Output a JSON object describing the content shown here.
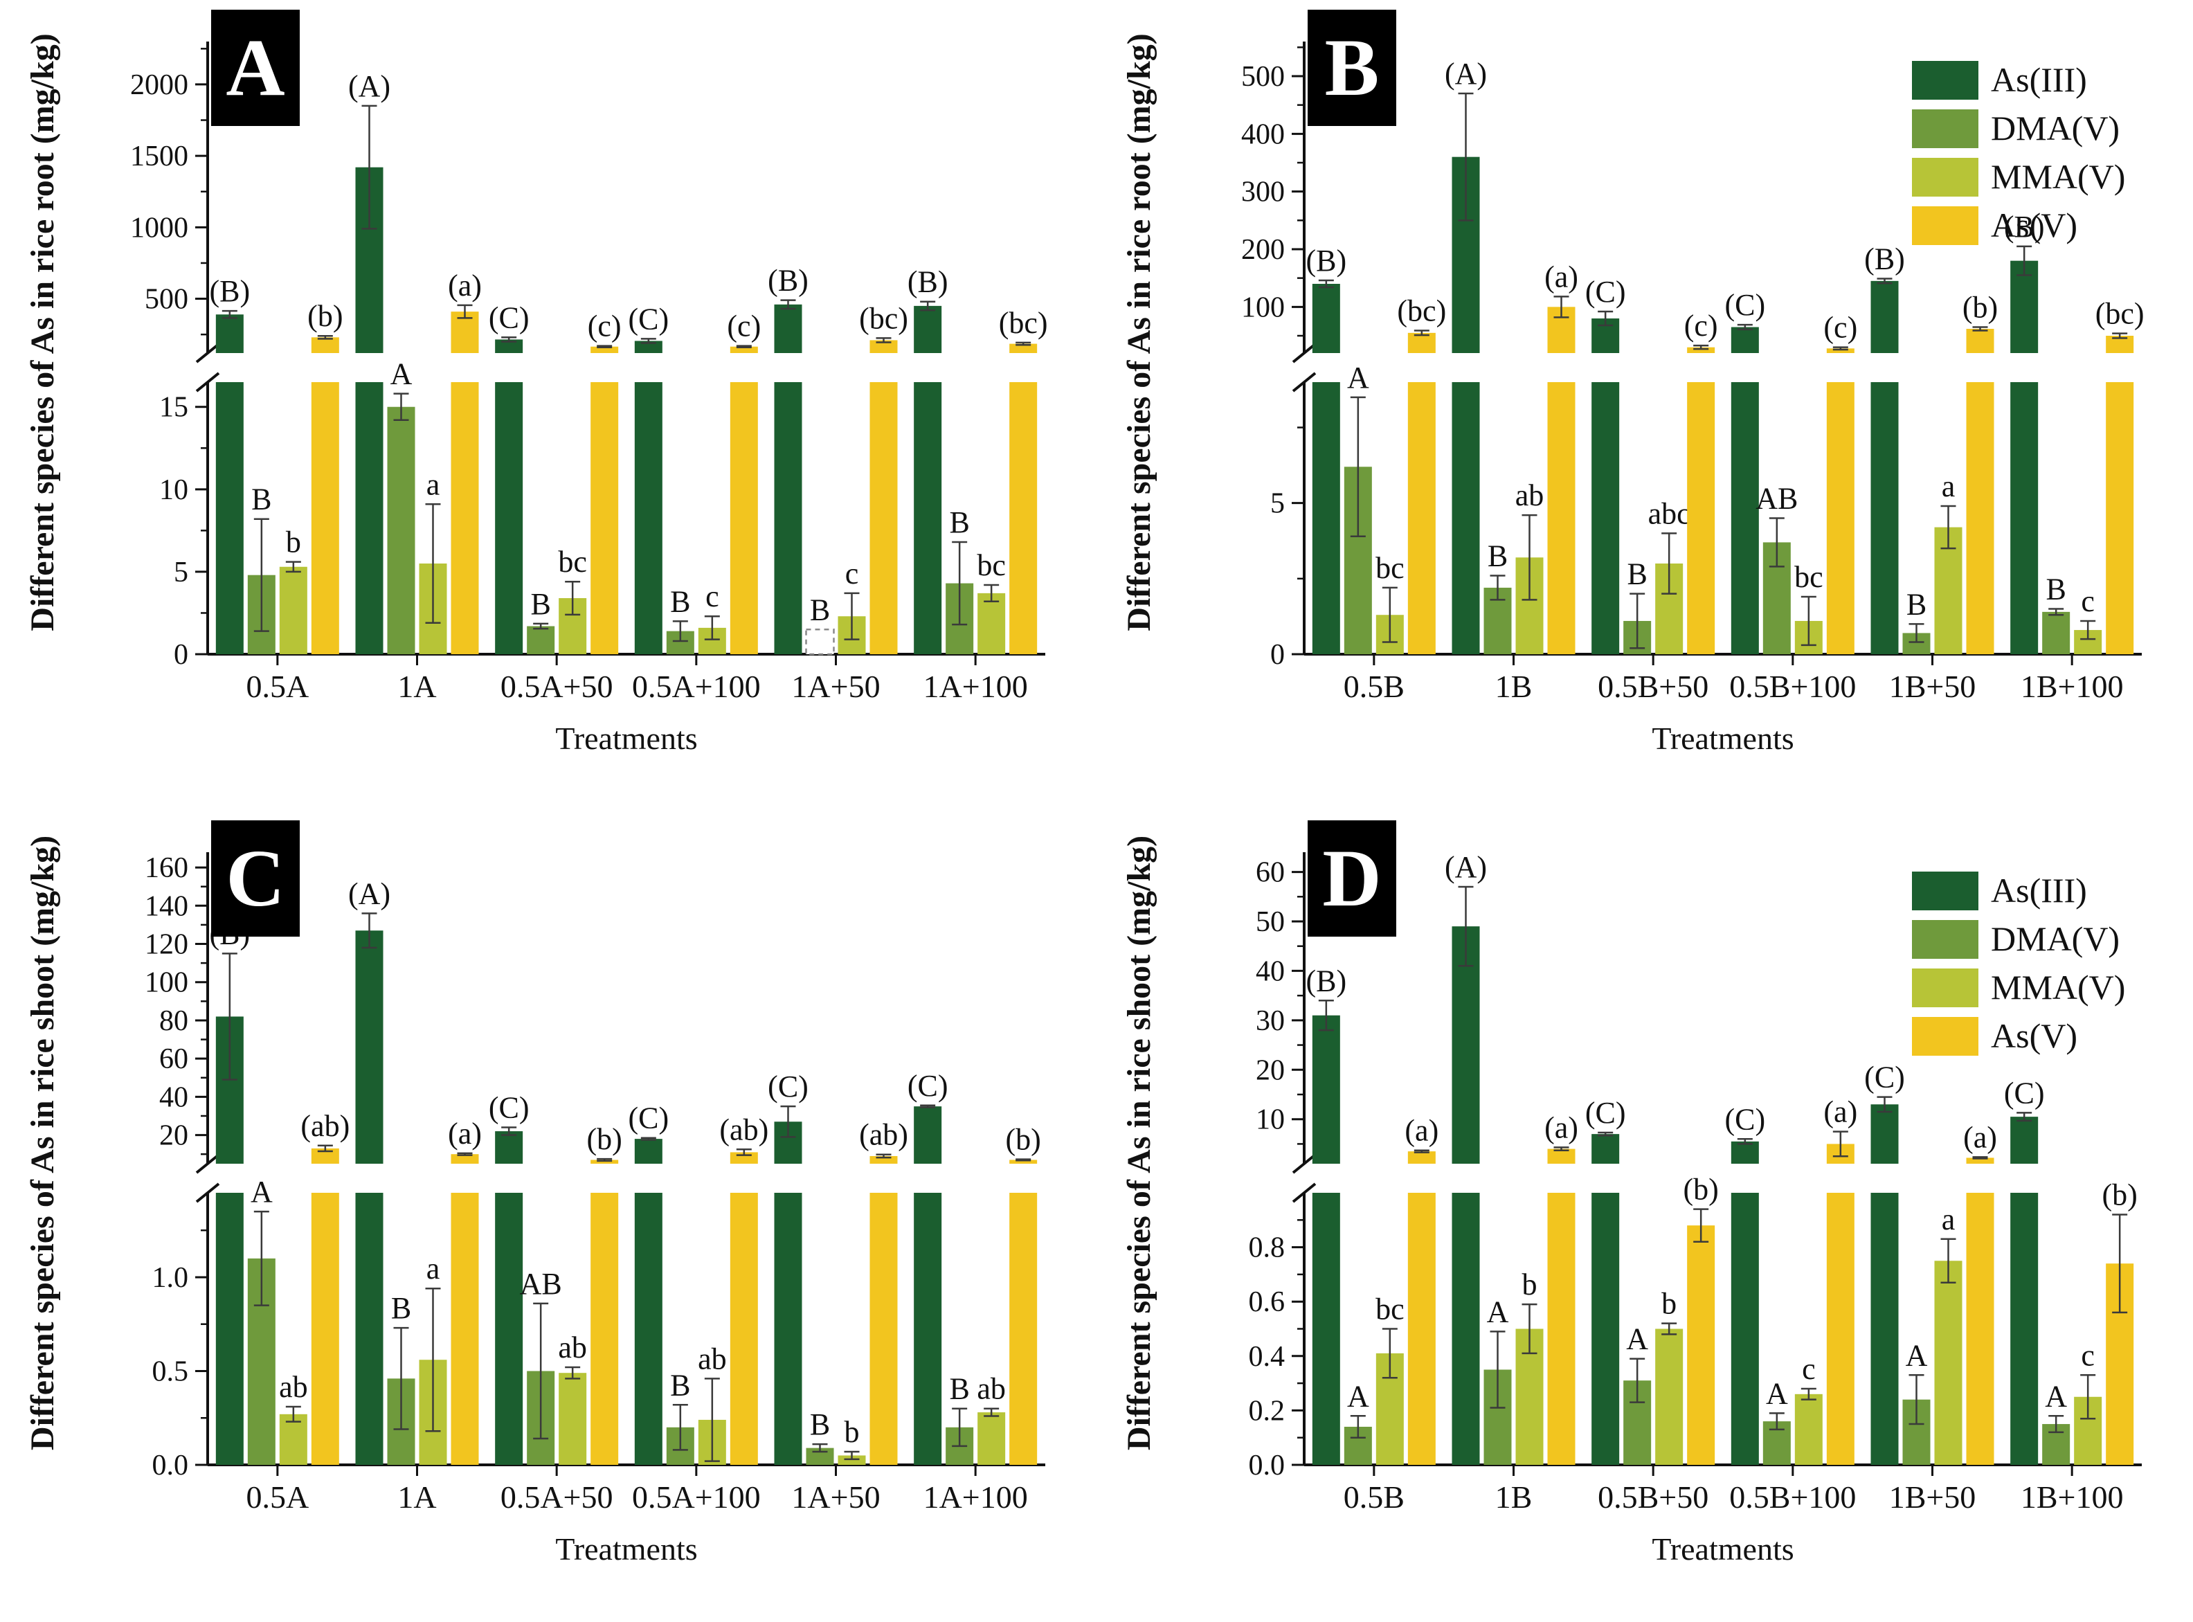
{
  "chart_data": [
    {
      "panel": "A",
      "type": "bar",
      "ylabel": "Different species of As in rice root (mg/kg)",
      "xlabel": "Treatments",
      "legend": false,
      "legend_position": "top-right",
      "grid": false,
      "categories": [
        "0.5A",
        "1A",
        "0.5A+50",
        "0.5A+100",
        "1A+50",
        "1A+100"
      ],
      "axis_break": {
        "lower_range": [
          0,
          16.5
        ],
        "lower_ticks": [
          0,
          5,
          10,
          15
        ],
        "lower_tick_labels": [
          "0",
          "5",
          "10",
          "15"
        ],
        "lower_minor_step": 2.5,
        "upper_range": [
          120,
          2300
        ],
        "upper_ticks": [
          500,
          1000,
          1500,
          2000
        ],
        "upper_tick_labels": [
          "500",
          "1000",
          "1500",
          "2000"
        ],
        "upper_minor_step": 250
      },
      "series": [
        {
          "name": "As(III)",
          "color": "#1b5e2f",
          "values": [
            390,
            1420,
            215,
            205,
            460,
            450
          ],
          "errors": [
            25,
            430,
            15,
            15,
            30,
            30
          ],
          "letters": [
            "(B)",
            "(A)",
            "(C)",
            "(C)",
            "(B)",
            "(B)"
          ]
        },
        {
          "name": "DMA(V)",
          "color": "#6f9a3c",
          "values": [
            4.8,
            15,
            1.7,
            1.4,
            1.5,
            4.3
          ],
          "errors": [
            3.4,
            0.8,
            0.15,
            0.6,
            0,
            2.5
          ],
          "letters": [
            "B",
            "A",
            "B",
            "B",
            "B",
            "B"
          ],
          "dashed": [
            false,
            false,
            false,
            false,
            true,
            false
          ]
        },
        {
          "name": "MMA(V)",
          "color": "#b7c437",
          "values": [
            5.3,
            5.5,
            3.4,
            1.6,
            2.3,
            3.7
          ],
          "errors": [
            0.3,
            3.6,
            1.0,
            0.7,
            1.4,
            0.5
          ],
          "letters": [
            "b",
            "a",
            "bc",
            "c",
            "c",
            "bc"
          ]
        },
        {
          "name": "As(V)",
          "color": "#f2c51f",
          "values": [
            230,
            410,
            165,
            165,
            210,
            185
          ],
          "errors": [
            10,
            45,
            5,
            5,
            15,
            8
          ],
          "letters": [
            "(b)",
            "(a)",
            "(c)",
            "(c)",
            "(bc)",
            "(bc)"
          ]
        }
      ]
    },
    {
      "panel": "B",
      "type": "bar",
      "ylabel": "Different species of As in rice root (mg/kg)",
      "xlabel": "Treatments",
      "legend": true,
      "legend_position": "top-right",
      "grid": false,
      "categories": [
        "0.5B",
        "1B",
        "0.5B+50",
        "0.5B+100",
        "1B+50",
        "1B+100"
      ],
      "axis_break": {
        "lower_range": [
          0,
          9
        ],
        "lower_ticks": [
          0,
          5
        ],
        "lower_tick_labels": [
          "0",
          "5"
        ],
        "lower_minor_step": 2.5,
        "upper_range": [
          20,
          560
        ],
        "upper_ticks": [
          100,
          200,
          300,
          400,
          500
        ],
        "upper_tick_labels": [
          "100",
          "200",
          "300",
          "400",
          "500"
        ],
        "upper_minor_step": 50
      },
      "series": [
        {
          "name": "As(III)",
          "color": "#1b5e2f",
          "values": [
            140,
            360,
            80,
            65,
            145,
            180
          ],
          "errors": [
            6,
            110,
            12,
            4,
            4,
            25
          ],
          "letters": [
            "(B)",
            "(A)",
            "(C)",
            "(C)",
            "(B)",
            "(B)"
          ]
        },
        {
          "name": "DMA(V)",
          "color": "#6f9a3c",
          "values": [
            6.2,
            2.2,
            1.1,
            3.7,
            0.7,
            1.4
          ],
          "errors": [
            2.3,
            0.4,
            0.9,
            0.8,
            0.3,
            0.1
          ],
          "letters": [
            "A",
            "B",
            "B",
            "AB",
            "B",
            "B"
          ]
        },
        {
          "name": "MMA(V)",
          "color": "#b7c437",
          "values": [
            1.3,
            3.2,
            3.0,
            1.1,
            4.2,
            0.8
          ],
          "errors": [
            0.9,
            1.4,
            1.0,
            0.8,
            0.7,
            0.3
          ],
          "letters": [
            "bc",
            "ab",
            "abc",
            "bc",
            "a",
            "c"
          ]
        },
        {
          "name": "As(V)",
          "color": "#f2c51f",
          "values": [
            55,
            100,
            30,
            28,
            62,
            50
          ],
          "errors": [
            4,
            18,
            3,
            2,
            3,
            4
          ],
          "letters": [
            "(bc)",
            "(a)",
            "(c)",
            "(c)",
            "(b)",
            "(bc)"
          ]
        }
      ]
    },
    {
      "panel": "C",
      "type": "bar",
      "ylabel": "Different species of As in rice shoot (mg/kg)",
      "xlabel": "Treatments",
      "legend": false,
      "legend_position": "top-right",
      "grid": false,
      "categories": [
        "0.5A",
        "1A",
        "0.5A+50",
        "0.5A+100",
        "1A+50",
        "1A+100"
      ],
      "axis_break": {
        "lower_range": [
          0,
          1.45
        ],
        "lower_ticks": [
          0,
          0.5,
          1.0
        ],
        "lower_tick_labels": [
          "0.0",
          "0.5",
          "1.0"
        ],
        "lower_minor_step": 0.25,
        "upper_range": [
          5,
          168
        ],
        "upper_ticks": [
          20,
          40,
          60,
          80,
          100,
          120,
          140,
          160
        ],
        "upper_tick_labels": [
          "20",
          "40",
          "60",
          "80",
          "100",
          "120",
          "140",
          "160"
        ],
        "upper_minor_step": 10
      },
      "series": [
        {
          "name": "As(III)",
          "color": "#1b5e2f",
          "values": [
            82,
            127,
            22,
            18,
            27,
            35
          ],
          "errors": [
            33,
            9,
            2,
            0.5,
            8,
            0.5
          ],
          "letters": [
            "(B)",
            "(A)",
            "(C)",
            "(C)",
            "(C)",
            "(C)"
          ]
        },
        {
          "name": "DMA(V)",
          "color": "#6f9a3c",
          "values": [
            1.1,
            0.46,
            0.5,
            0.2,
            0.09,
            0.2
          ],
          "errors": [
            0.25,
            0.27,
            0.36,
            0.12,
            0.02,
            0.1
          ],
          "letters": [
            "A",
            "B",
            "AB",
            "B",
            "B",
            "B"
          ]
        },
        {
          "name": "MMA(V)",
          "color": "#b7c437",
          "values": [
            0.27,
            0.56,
            0.49,
            0.24,
            0.05,
            0.28
          ],
          "errors": [
            0.04,
            0.38,
            0.03,
            0.22,
            0.02,
            0.02
          ],
          "letters": [
            "ab",
            "a",
            "ab",
            "ab",
            "b",
            "ab"
          ]
        },
        {
          "name": "As(V)",
          "color": "#f2c51f",
          "values": [
            13,
            10,
            7,
            11,
            9,
            7
          ],
          "errors": [
            1.5,
            0.5,
            0.5,
            1.5,
            0.8,
            0.3
          ],
          "letters": [
            "(ab)",
            "(a)",
            "(b)",
            "(ab)",
            "(ab)",
            "(b)"
          ]
        }
      ]
    },
    {
      "panel": "D",
      "type": "bar",
      "ylabel": "Different species of As in rice shoot (mg/kg)",
      "xlabel": "Treatments",
      "legend": true,
      "legend_position": "top-right",
      "grid": false,
      "categories": [
        "0.5B",
        "1B",
        "0.5B+50",
        "0.5B+100",
        "1B+50",
        "1B+100"
      ],
      "axis_break": {
        "lower_range": [
          0,
          1.0
        ],
        "lower_ticks": [
          0,
          0.2,
          0.4,
          0.6,
          0.8
        ],
        "lower_tick_labels": [
          "0.0",
          "0.2",
          "0.4",
          "0.6",
          "0.8"
        ],
        "lower_minor_step": 0.1,
        "upper_range": [
          1,
          64
        ],
        "upper_ticks": [
          10,
          20,
          30,
          40,
          50,
          60
        ],
        "upper_tick_labels": [
          "10",
          "20",
          "30",
          "40",
          "50",
          "60"
        ],
        "upper_minor_step": 5
      },
      "series": [
        {
          "name": "As(III)",
          "color": "#1b5e2f",
          "values": [
            31,
            49,
            7,
            5.5,
            13,
            10.5
          ],
          "errors": [
            3,
            8,
            0.3,
            0.5,
            1.5,
            0.8
          ],
          "letters": [
            "(B)",
            "(A)",
            "(C)",
            "(C)",
            "(C)",
            "(C)"
          ]
        },
        {
          "name": "DMA(V)",
          "color": "#6f9a3c",
          "values": [
            0.14,
            0.35,
            0.31,
            0.16,
            0.24,
            0.15
          ],
          "errors": [
            0.04,
            0.14,
            0.08,
            0.03,
            0.09,
            0.03
          ],
          "letters": [
            "A",
            "A",
            "A",
            "A",
            "A",
            "A"
          ]
        },
        {
          "name": "MMA(V)",
          "color": "#b7c437",
          "values": [
            0.41,
            0.5,
            0.5,
            0.26,
            0.75,
            0.25
          ],
          "errors": [
            0.09,
            0.09,
            0.02,
            0.02,
            0.08,
            0.08
          ],
          "letters": [
            "bc",
            "b",
            "b",
            "c",
            "a",
            "c"
          ]
        },
        {
          "name": "As(V)",
          "color": "#f2c51f",
          "values": [
            3.5,
            4,
            0.88,
            5,
            2.2,
            0.74
          ],
          "errors": [
            0.2,
            0.3,
            0.06,
            2.5,
            0.15,
            0.18
          ],
          "letters": [
            "(a)",
            "(a)",
            "(b)",
            "(a)",
            "(a)",
            "(b)"
          ]
        }
      ]
    }
  ],
  "error_bar_color": "#3a3a3a",
  "axis_color": "#111111"
}
